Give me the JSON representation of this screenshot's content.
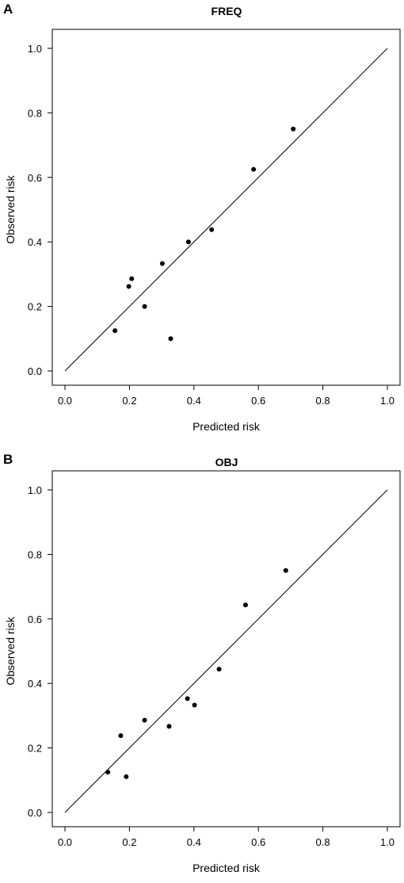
{
  "chart_data": [
    {
      "panel": "A",
      "type": "scatter",
      "title": "FREQ",
      "xlabel": "Predicted risk",
      "ylabel": "Observed risk",
      "xlim": [
        0,
        1
      ],
      "ylim": [
        0,
        1
      ],
      "xticks": [
        "0.0",
        "0.2",
        "0.4",
        "0.6",
        "0.8",
        "1.0"
      ],
      "yticks": [
        "0.0",
        "0.2",
        "0.4",
        "0.6",
        "0.8",
        "1.0"
      ],
      "reference_line": [
        [
          0,
          0
        ],
        [
          1,
          1
        ]
      ],
      "points": [
        {
          "x": 0.155,
          "y": 0.125
        },
        {
          "x": 0.198,
          "y": 0.262
        },
        {
          "x": 0.207,
          "y": 0.286
        },
        {
          "x": 0.247,
          "y": 0.2
        },
        {
          "x": 0.302,
          "y": 0.333
        },
        {
          "x": 0.328,
          "y": 0.1
        },
        {
          "x": 0.383,
          "y": 0.4
        },
        {
          "x": 0.455,
          "y": 0.438
        },
        {
          "x": 0.585,
          "y": 0.625
        },
        {
          "x": 0.708,
          "y": 0.75
        }
      ],
      "grid": false,
      "legend": "none"
    },
    {
      "panel": "B",
      "type": "scatter",
      "title": "OBJ",
      "xlabel": "Predicted risk",
      "ylabel": "Observed risk",
      "xlim": [
        0,
        1
      ],
      "ylim": [
        0,
        1
      ],
      "xticks": [
        "0.0",
        "0.2",
        "0.4",
        "0.6",
        "0.8",
        "1.0"
      ],
      "yticks": [
        "0.0",
        "0.2",
        "0.4",
        "0.6",
        "0.8",
        "1.0"
      ],
      "reference_line": [
        [
          0,
          0
        ],
        [
          1,
          1
        ]
      ],
      "points": [
        {
          "x": 0.133,
          "y": 0.125
        },
        {
          "x": 0.173,
          "y": 0.238
        },
        {
          "x": 0.19,
          "y": 0.111
        },
        {
          "x": 0.247,
          "y": 0.286
        },
        {
          "x": 0.323,
          "y": 0.267
        },
        {
          "x": 0.38,
          "y": 0.353
        },
        {
          "x": 0.402,
          "y": 0.333
        },
        {
          "x": 0.478,
          "y": 0.444
        },
        {
          "x": 0.56,
          "y": 0.643
        },
        {
          "x": 0.685,
          "y": 0.75
        }
      ],
      "grid": false,
      "legend": "none"
    }
  ]
}
